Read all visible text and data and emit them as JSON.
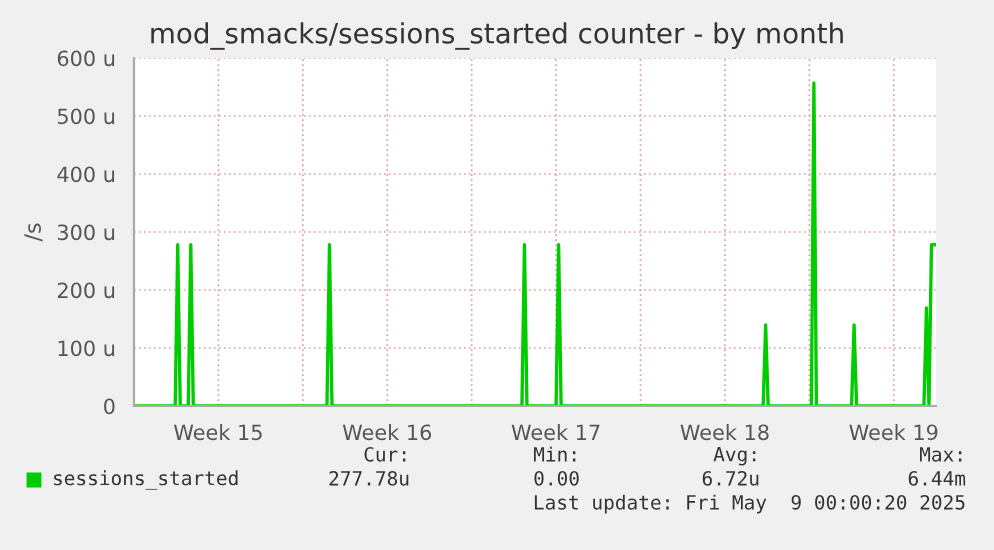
{
  "chart_data": {
    "type": "line",
    "title": "mod_smacks/sessions_started counter - by month",
    "ylabel": "/s",
    "series": [
      {
        "name": "sessions_started",
        "color": "#00cc00",
        "x": [
          "2025-04-07T00:00",
          "2025-04-08T17:00",
          "2025-04-08T19:30",
          "2025-04-08T22:00",
          "2025-04-09T06:00",
          "2025-04-09T08:30",
          "2025-04-09T11:00",
          "2025-04-15T00:00",
          "2025-04-15T02:30",
          "2025-04-15T05:00",
          "2025-04-23T02:00",
          "2025-04-23T04:30",
          "2025-04-23T07:00",
          "2025-04-24T12:00",
          "2025-04-24T14:30",
          "2025-04-24T17:00",
          "2025-05-03T02:00",
          "2025-05-03T04:30",
          "2025-05-03T07:00",
          "2025-05-05T02:00",
          "2025-05-05T04:30",
          "2025-05-05T07:00",
          "2025-05-06T18:00",
          "2025-05-06T20:30",
          "2025-05-06T23:00",
          "2025-05-09T18:00",
          "2025-05-09T20:30",
          "2025-05-09T23:00",
          "2025-05-10T01:30",
          "2025-05-10T06:00"
        ],
        "values": [
          0,
          0,
          278,
          0,
          0,
          278,
          0,
          0,
          278,
          0,
          0,
          278,
          0,
          0,
          278,
          0,
          0,
          140,
          0,
          0,
          557,
          0,
          0,
          140,
          0,
          0,
          169,
          0,
          278,
          278
        ]
      }
    ],
    "xlim": [
      "2025-04-07T00:00",
      "2025-05-10T06:00"
    ],
    "xticks": [
      {
        "value": "2025-04-10T12:00",
        "label": "Week 15"
      },
      {
        "value": "2025-04-14",
        "label": null
      },
      {
        "value": "2025-04-17T12:00",
        "label": "Week 16"
      },
      {
        "value": "2025-04-21",
        "label": null
      },
      {
        "value": "2025-04-24T12:00",
        "label": "Week 17"
      },
      {
        "value": "2025-04-28",
        "label": null
      },
      {
        "value": "2025-05-01T12:00",
        "label": "Week 18"
      },
      {
        "value": "2025-05-05",
        "label": null
      },
      {
        "value": "2025-05-08T12:00",
        "label": "Week 19"
      }
    ],
    "ylim": [
      0,
      600
    ],
    "yticks": [
      {
        "value": 0,
        "label": "0"
      },
      {
        "value": 100,
        "label": "100 u"
      },
      {
        "value": 200,
        "label": "200 u"
      },
      {
        "value": 300,
        "label": "300 u"
      },
      {
        "value": 400,
        "label": "400 u"
      },
      {
        "value": 500,
        "label": "500 u"
      },
      {
        "value": 600,
        "label": "600 u"
      }
    ],
    "grid": true,
    "legend": "bottom left",
    "annotations": [
      "Cur:",
      "Min:",
      "Avg:",
      "Max:",
      "277.78u",
      "0.00",
      "6.72u",
      "6.44m",
      "Last update: Fri May  9 00:00:20 2025"
    ]
  }
}
